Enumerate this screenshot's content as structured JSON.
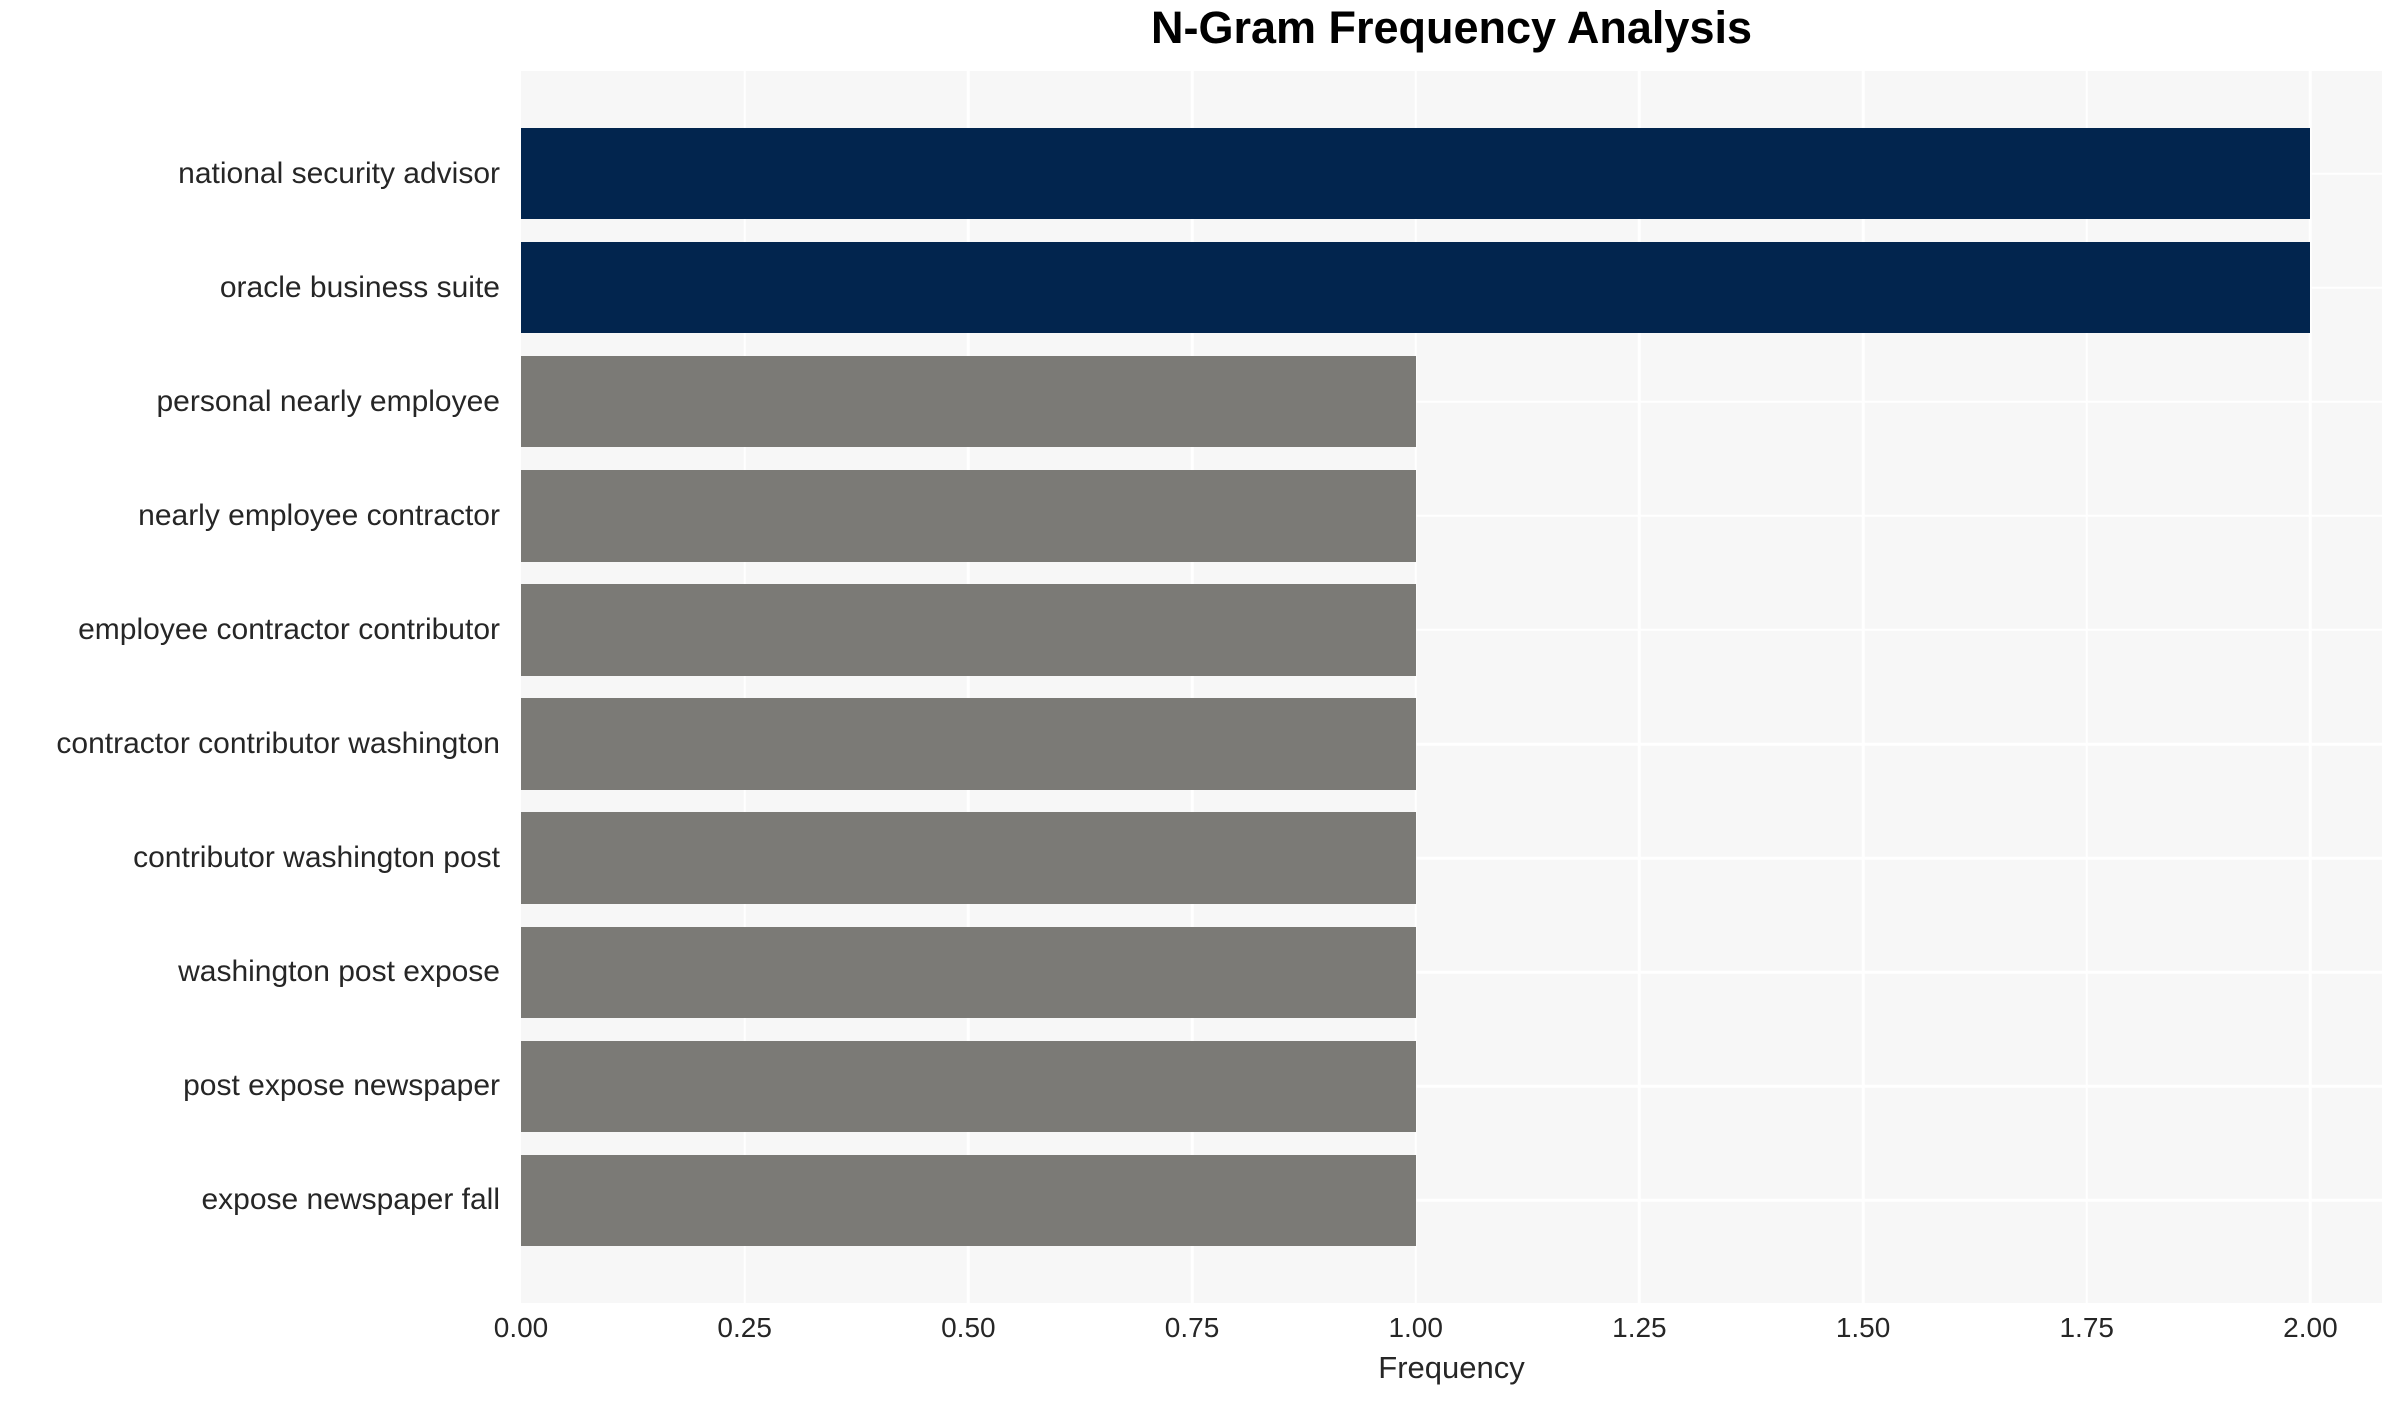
{
  "chart": {
    "title": "N-Gram Frequency Analysis",
    "xlabel": "Frequency"
  },
  "chart_data": {
    "type": "bar",
    "orientation": "horizontal",
    "title": "N-Gram Frequency Analysis",
    "xlabel": "Frequency",
    "ylabel": "",
    "categories": [
      "national security advisor",
      "oracle business suite",
      "personal nearly employee",
      "nearly employee contractor",
      "employee contractor contributor",
      "contractor contributor washington",
      "contributor washington post",
      "washington post expose",
      "post expose newspaper",
      "expose newspaper fall"
    ],
    "values": [
      2,
      2,
      1,
      1,
      1,
      1,
      1,
      1,
      1,
      1
    ],
    "bar_colors": [
      "#02254e",
      "#02254e",
      "#7b7a76",
      "#7b7a76",
      "#7b7a76",
      "#7b7a76",
      "#7b7a76",
      "#7b7a76",
      "#7b7a76",
      "#7b7a76"
    ],
    "xticks": [
      0,
      0.25,
      0.5,
      0.75,
      1.0,
      1.25,
      1.5,
      1.75,
      2.0
    ],
    "xtick_labels": [
      "0.00",
      "0.25",
      "0.50",
      "0.75",
      "1.00",
      "1.25",
      "1.50",
      "1.75",
      "2.00"
    ],
    "xlim": [
      0,
      2.08
    ],
    "grid": true,
    "legend": false,
    "colors": {
      "bar_highlight": "#02254e",
      "bar_default": "#7b7a76",
      "plot_background": "#f7f7f7",
      "grid_line": "#ffffff",
      "tick_text": "#262626",
      "title_text": "#000000"
    }
  }
}
